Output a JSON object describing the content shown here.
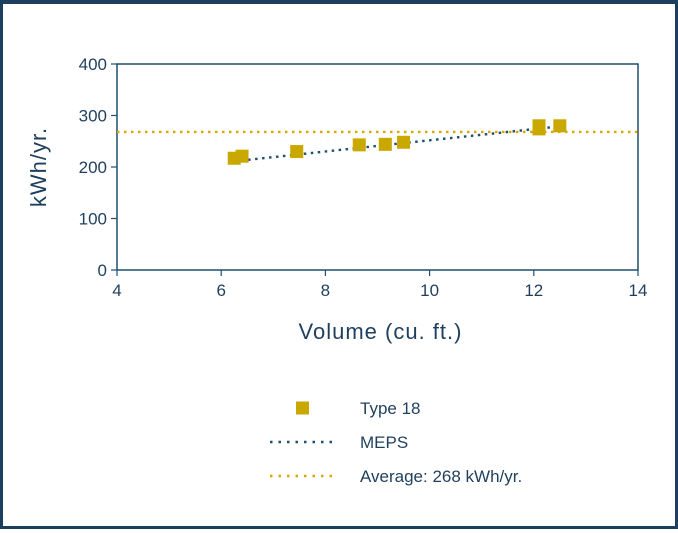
{
  "chart_data": {
    "type": "scatter",
    "title": "",
    "xlabel": "Volume (cu. ft.)",
    "ylabel": "kWh/yr.",
    "xlim": [
      4,
      14
    ],
    "ylim": [
      0,
      400
    ],
    "xticks": [
      "4",
      "6",
      "8",
      "10",
      "12",
      "14"
    ],
    "yticks": [
      "0",
      "100",
      "200",
      "300",
      "400"
    ],
    "grid": false,
    "legend_position": "bottom",
    "series": [
      {
        "name": "Type 18",
        "kind": "scatter",
        "color": "#c9a800",
        "x": [
          6.25,
          6.4,
          7.45,
          8.65,
          9.15,
          9.5,
          12.1,
          12.1,
          12.5
        ],
        "y": [
          217,
          221,
          230,
          243,
          244,
          248,
          274,
          280,
          280
        ]
      },
      {
        "name": "MEPS",
        "kind": "line",
        "style": "dotted",
        "color": "#1f4e6e",
        "x": [
          6.25,
          12.5
        ],
        "y": [
          211,
          279
        ]
      },
      {
        "name": "Average: 268 kWh/yr.",
        "kind": "line",
        "style": "dotted",
        "color": "#d9a800",
        "x": [
          4,
          14
        ],
        "y": [
          268,
          268
        ]
      }
    ]
  }
}
